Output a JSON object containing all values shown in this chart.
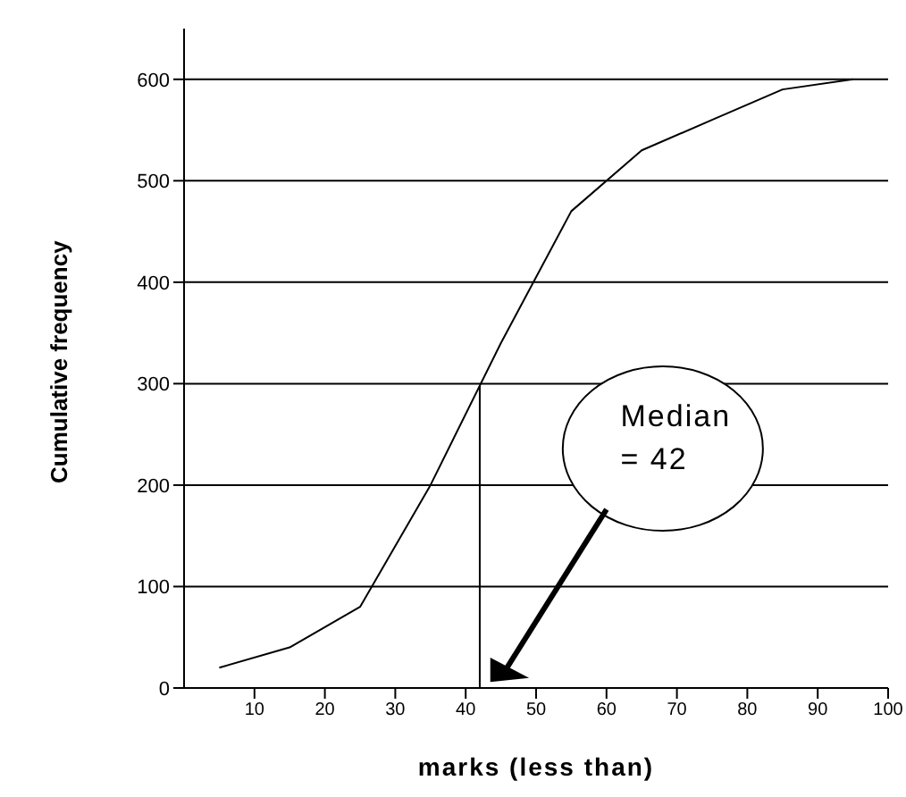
{
  "chart_data": {
    "type": "line",
    "xlabel": "marks (less than)",
    "ylabel": "Cumulative frequency",
    "x": [
      5,
      15,
      25,
      35,
      45,
      55,
      65,
      75,
      85,
      95
    ],
    "series": [
      {
        "color": "#000000",
        "values": [
          20,
          40,
          80,
          200,
          340,
          470,
          530,
          560,
          590,
          600
        ]
      }
    ],
    "xlim": [
      0,
      100
    ],
    "xticks": [
      10,
      20,
      30,
      40,
      50,
      60,
      70,
      80,
      90,
      100
    ],
    "ylim": [
      0,
      650
    ],
    "yticks": [
      0,
      100,
      200,
      300,
      400,
      500,
      600
    ],
    "grid": "y",
    "marker": "none",
    "line_style": "solid",
    "ref_lines": [
      {
        "axis": "x",
        "value": 42,
        "color": "#000000"
      }
    ],
    "annotations": [
      "Median\n= 42"
    ]
  }
}
